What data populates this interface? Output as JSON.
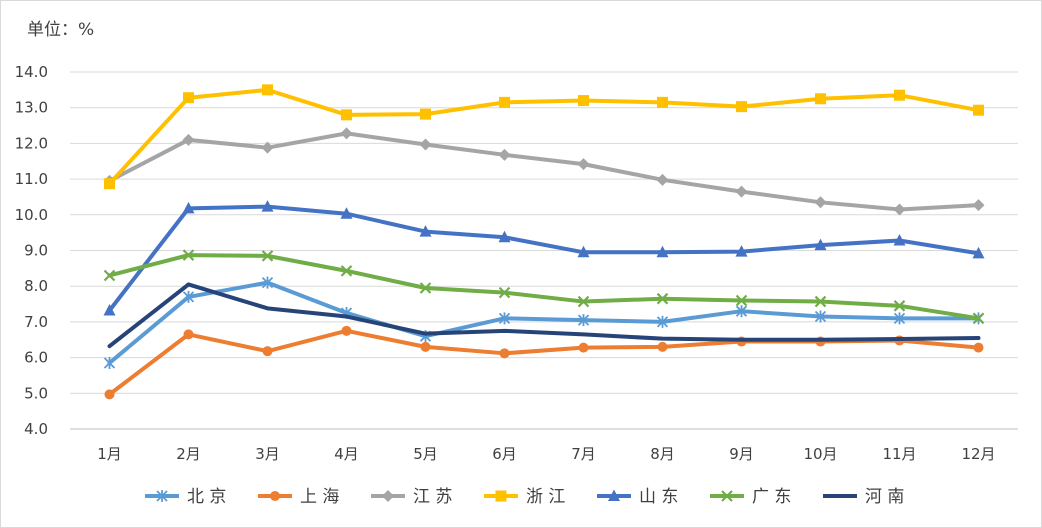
{
  "chart_data": {
    "type": "line",
    "unit_label": "单位：%",
    "categories": [
      "1月",
      "2月",
      "3月",
      "4月",
      "5月",
      "6月",
      "7月",
      "8月",
      "9月",
      "10月",
      "11月",
      "12月"
    ],
    "ylim": [
      4.0,
      14.0
    ],
    "yticks": [
      "4.0",
      "5.0",
      "6.0",
      "7.0",
      "8.0",
      "9.0",
      "10.0",
      "11.0",
      "12.0",
      "13.0",
      "14.0"
    ],
    "grid": true,
    "legend_position": "bottom",
    "series": [
      {
        "name": "北 京",
        "color": "#5b9bd5",
        "marker": "asterisk",
        "values": [
          5.85,
          7.7,
          8.1,
          7.25,
          6.6,
          7.1,
          7.05,
          7.0,
          7.3,
          7.15,
          7.1,
          7.1
        ]
      },
      {
        "name": "上 海",
        "color": "#ed7d31",
        "marker": "circle",
        "values": [
          4.97,
          6.65,
          6.18,
          6.75,
          6.3,
          6.12,
          6.28,
          6.3,
          6.45,
          6.45,
          6.48,
          6.28
        ]
      },
      {
        "name": "江 苏",
        "color": "#a5a5a5",
        "marker": "diamond",
        "values": [
          10.95,
          12.1,
          11.88,
          12.28,
          11.97,
          11.68,
          11.42,
          10.98,
          10.65,
          10.35,
          10.15,
          10.27
        ]
      },
      {
        "name": "浙 江",
        "color": "#ffc000",
        "marker": "square",
        "values": [
          10.87,
          13.28,
          13.5,
          12.8,
          12.82,
          13.15,
          13.2,
          13.15,
          13.03,
          13.25,
          13.35,
          12.93
        ]
      },
      {
        "name": "山 东",
        "color": "#4472c4",
        "marker": "triangle",
        "values": [
          7.32,
          10.18,
          10.23,
          10.03,
          9.53,
          9.37,
          8.95,
          8.95,
          8.97,
          9.15,
          9.28,
          8.92
        ]
      },
      {
        "name": "广 东",
        "color": "#70ad47",
        "marker": "x",
        "values": [
          8.3,
          8.87,
          8.85,
          8.43,
          7.95,
          7.82,
          7.57,
          7.65,
          7.6,
          7.57,
          7.45,
          7.1
        ]
      },
      {
        "name": "河 南",
        "color": "#264478",
        "marker": "none",
        "values": [
          6.32,
          8.05,
          7.38,
          7.15,
          6.67,
          6.75,
          6.65,
          6.53,
          6.5,
          6.5,
          6.52,
          6.55
        ]
      }
    ]
  }
}
